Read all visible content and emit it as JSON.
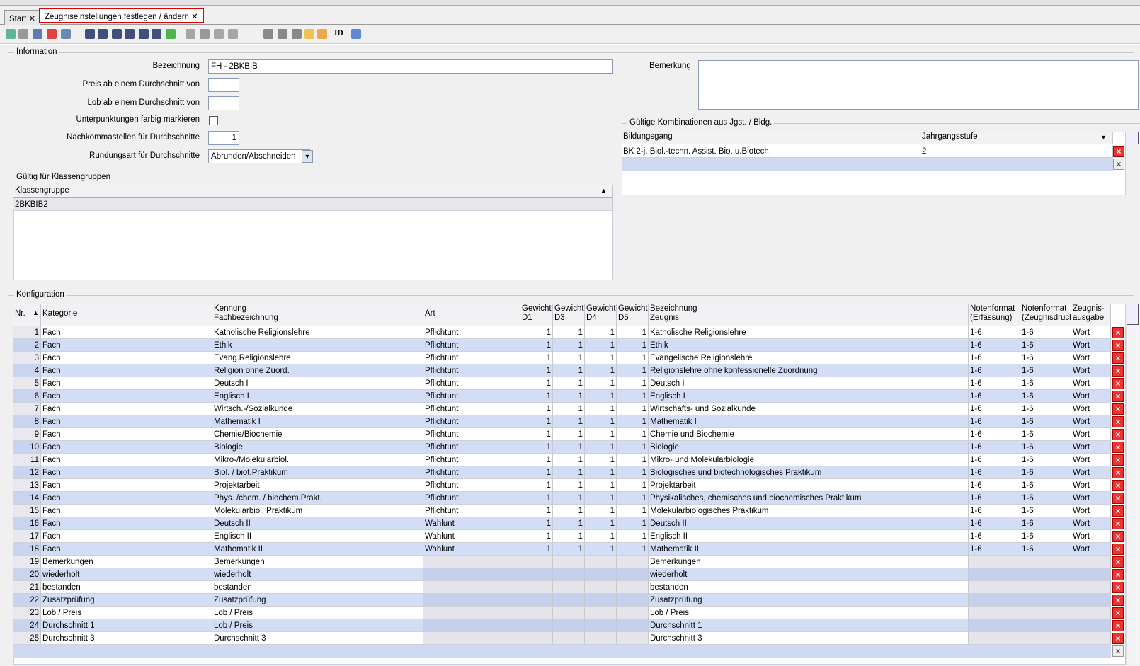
{
  "tabs": [
    "Start",
    "Zeugniseinstellungen festlegen / ändern"
  ],
  "toolbar": {
    "id": "ID"
  },
  "information": {
    "title": "Information",
    "fields": [
      {
        "label": "Bezeichnung",
        "value": "FH - 2BKBIB"
      },
      {
        "label": "Preis ab einem Durchschnitt von"
      },
      {
        "label": "Lob ab einem Durchschnitt von"
      },
      {
        "label": "Unterpunktungen farbig markieren"
      },
      {
        "label": "Nachkommastellen für Durchschnitte",
        "value": 1
      },
      {
        "label": "Rundungsart für Durchschnitte",
        "value": "Abrunden/Abschneiden"
      }
    ],
    "bemerkung": "Bemerkung"
  },
  "kombinationen": {
    "title": "Gültige Kombinationen aus Jgst. / Bldg.",
    "columns": [
      "Bildungsgang",
      "Jahrgangsstufe"
    ],
    "rows": [
      [
        "BK 2-j. Biol.-techn. Assist. Bio. u.Biotech.",
        "2"
      ]
    ]
  },
  "klassengruppen": {
    "title": "Gültig für Klassengruppen",
    "columns": [
      "Klassengruppe"
    ],
    "rows": [
      [
        "2BKBIB2"
      ]
    ]
  },
  "konfiguration": {
    "title": "Konfiguration",
    "columns": [
      [
        "Nr."
      ],
      [
        "Kategorie"
      ],
      [
        "Kennung",
        "Fachbezeichnung"
      ],
      [
        "Art"
      ],
      [
        "Gewicht",
        "D1"
      ],
      [
        "Gewicht",
        "D3"
      ],
      [
        "Gewicht",
        "D4"
      ],
      [
        "Gewicht",
        "D5"
      ],
      [
        "Bezeichnung",
        "Zeugnis"
      ],
      [
        "Notenformat",
        "(Erfassung)"
      ],
      [
        "Notenformat",
        "(Zeugnisdruck)"
      ],
      [
        "Zeugnis-",
        "ausgabe"
      ]
    ],
    "rows": [
      [
        1,
        "Fach",
        "Katholische Religionslehre",
        "Pflichtunt",
        1,
        1,
        1,
        1,
        "Katholische Religionslehre",
        "1-6",
        "1-6",
        "Wort"
      ],
      [
        2,
        "Fach",
        "Ethik",
        "Pflichtunt",
        1,
        1,
        1,
        1,
        "Ethik",
        "1-6",
        "1-6",
        "Wort"
      ],
      [
        3,
        "Fach",
        "Evang.Religionslehre",
        "Pflichtunt",
        1,
        1,
        1,
        1,
        "Evangelische Religionslehre",
        "1-6",
        "1-6",
        "Wort"
      ],
      [
        4,
        "Fach",
        "Religion ohne Zuord.",
        "Pflichtunt",
        1,
        1,
        1,
        1,
        "Religionslehre ohne konfessionelle Zuordnung",
        "1-6",
        "1-6",
        "Wort"
      ],
      [
        5,
        "Fach",
        "Deutsch I",
        "Pflichtunt",
        1,
        1,
        1,
        1,
        "Deutsch I",
        "1-6",
        "1-6",
        "Wort"
      ],
      [
        6,
        "Fach",
        "Englisch I",
        "Pflichtunt",
        1,
        1,
        1,
        1,
        "Englisch I",
        "1-6",
        "1-6",
        "Wort"
      ],
      [
        7,
        "Fach",
        "Wirtsch.-/Sozialkunde",
        "Pflichtunt",
        1,
        1,
        1,
        1,
        "Wirtschafts- und Sozialkunde",
        "1-6",
        "1-6",
        "Wort"
      ],
      [
        8,
        "Fach",
        "Mathematik I",
        "Pflichtunt",
        1,
        1,
        1,
        1,
        "Mathematik I",
        "1-6",
        "1-6",
        "Wort"
      ],
      [
        9,
        "Fach",
        "Chemie/Biochemie",
        "Pflichtunt",
        1,
        1,
        1,
        1,
        "Chemie und Biochemie",
        "1-6",
        "1-6",
        "Wort"
      ],
      [
        10,
        "Fach",
        "Biologie",
        "Pflichtunt",
        1,
        1,
        1,
        1,
        "Biologie",
        "1-6",
        "1-6",
        "Wort"
      ],
      [
        11,
        "Fach",
        "Mikro-/Molekularbiol.",
        "Pflichtunt",
        1,
        1,
        1,
        1,
        "Mikro- und Molekularbiologie",
        "1-6",
        "1-6",
        "Wort"
      ],
      [
        12,
        "Fach",
        "Biol. / biot.Praktikum",
        "Pflichtunt",
        1,
        1,
        1,
        1,
        "Biologisches und biotechnologisches Praktikum",
        "1-6",
        "1-6",
        "Wort"
      ],
      [
        13,
        "Fach",
        "Projektarbeit",
        "Pflichtunt",
        1,
        1,
        1,
        1,
        "Projektarbeit",
        "1-6",
        "1-6",
        "Wort"
      ],
      [
        14,
        "Fach",
        "Phys. /chem. / biochem.Prakt.",
        "Pflichtunt",
        1,
        1,
        1,
        1,
        "Physikalisches, chemisches und biochemisches Praktikum",
        "1-6",
        "1-6",
        "Wort"
      ],
      [
        15,
        "Fach",
        "Molekularbiol. Praktikum",
        "Pflichtunt",
        1,
        1,
        1,
        1,
        "Molekularbiologisches Praktikum",
        "1-6",
        "1-6",
        "Wort"
      ],
      [
        16,
        "Fach",
        "Deutsch II",
        "Wahlunt",
        1,
        1,
        1,
        1,
        "Deutsch II",
        "1-6",
        "1-6",
        "Wort"
      ],
      [
        17,
        "Fach",
        "Englisch II",
        "Wahlunt",
        1,
        1,
        1,
        1,
        "Englisch II",
        "1-6",
        "1-6",
        "Wort"
      ],
      [
        18,
        "Fach",
        "Mathematik II",
        "Wahlunt",
        1,
        1,
        1,
        1,
        "Mathematik II",
        "1-6",
        "1-6",
        "Wort"
      ],
      [
        19,
        "Bemerkungen",
        "Bemerkungen",
        null,
        null,
        null,
        null,
        null,
        "Bemerkungen",
        null,
        null,
        null
      ],
      [
        20,
        "wiederholt",
        "wiederholt",
        null,
        null,
        null,
        null,
        null,
        "wiederholt",
        null,
        null,
        null
      ],
      [
        21,
        "bestanden",
        "bestanden",
        null,
        null,
        null,
        null,
        null,
        "bestanden",
        null,
        null,
        null
      ],
      [
        22,
        "Zusatzprüfung",
        "Zusatzprüfung",
        null,
        null,
        null,
        null,
        null,
        "Zusatzprüfung",
        null,
        null,
        null
      ],
      [
        23,
        "Lob / Preis",
        "Lob / Preis",
        null,
        null,
        null,
        null,
        null,
        "Lob / Preis",
        null,
        null,
        null
      ],
      [
        24,
        "Durchschnitt 1",
        "Lob / Preis",
        null,
        null,
        null,
        null,
        null,
        "Durchschnitt 1",
        null,
        null,
        null
      ],
      [
        25,
        "Durchschnitt 3",
        "Durchschnitt 3",
        null,
        null,
        null,
        null,
        null,
        "Durchschnitt 3",
        null,
        null,
        null
      ]
    ]
  }
}
